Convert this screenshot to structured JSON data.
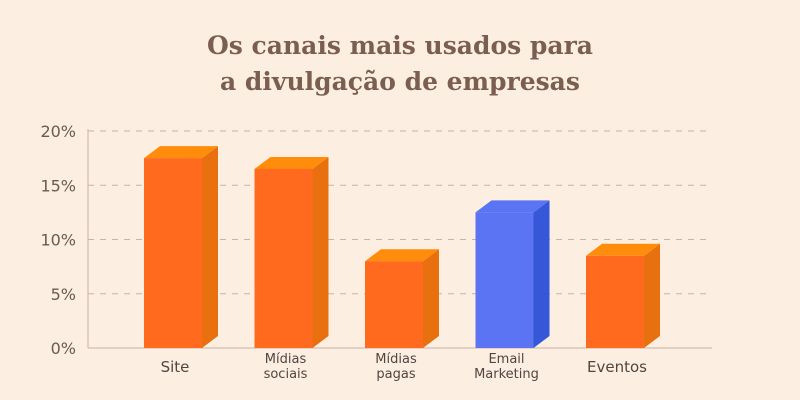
{
  "chart_data": {
    "type": "bar",
    "title_lines": [
      "Os canais mais usados para",
      "a divulgação de empresas"
    ],
    "categories": [
      [
        "Site"
      ],
      [
        "Mídias",
        "sociais"
      ],
      [
        "Mídias",
        "pagas"
      ],
      [
        "Email",
        "Marketing"
      ],
      [
        "Eventos"
      ]
    ],
    "values": [
      17.5,
      16.5,
      8,
      12.5,
      8.5
    ],
    "y_ticks": [
      "0%",
      "5%",
      "10%",
      "15%",
      "20%"
    ],
    "ylim": [
      0,
      20
    ],
    "grid": true,
    "bar_colors": [
      "#ff6a1f",
      "#ff6a1f",
      "#ff6a1f",
      "#5b74f3",
      "#ff6a1f"
    ],
    "bar_side_colors": [
      "#e8700f",
      "#e8700f",
      "#e8700f",
      "#3557d8",
      "#e8700f"
    ],
    "bar_top_colors": [
      "#ff8c0a",
      "#ff8c0a",
      "#ff8c0a",
      "#5b74f3",
      "#ff8c0a"
    ]
  }
}
